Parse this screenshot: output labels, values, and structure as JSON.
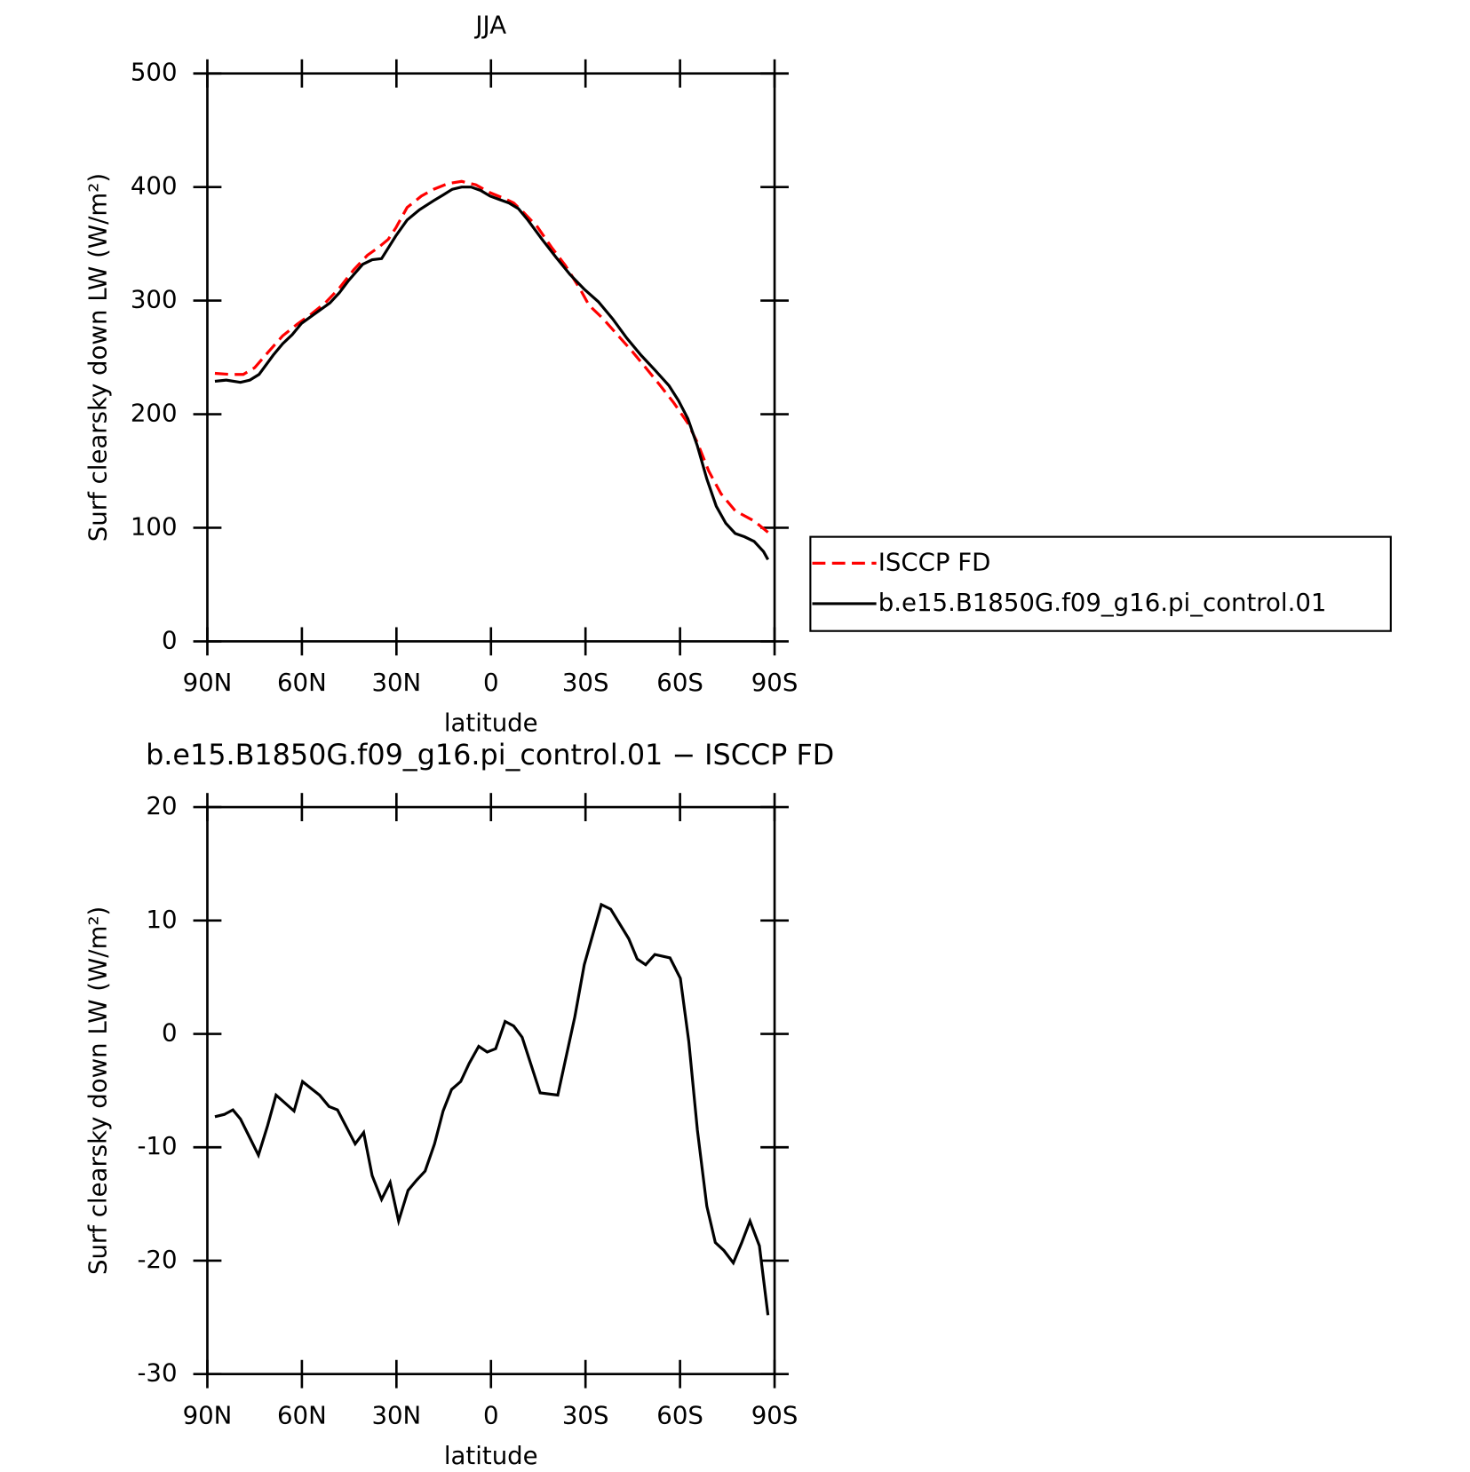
{
  "chart_data": [
    {
      "type": "line",
      "title": "JJA",
      "ylabel": "Surf clearsky down LW (W/m²)",
      "xlabel": "latitude",
      "xlim": [
        90,
        -90
      ],
      "xticks": [
        {
          "value": 90,
          "label": "90N"
        },
        {
          "value": 60,
          "label": "60N"
        },
        {
          "value": 30,
          "label": "30N"
        },
        0,
        {
          "value": -30,
          "label": "30S"
        },
        {
          "value": -60,
          "label": "60S"
        },
        {
          "value": -90,
          "label": "90S"
        }
      ],
      "ylim": [
        0,
        500
      ],
      "yticks": [
        0,
        100,
        200,
        300,
        400,
        500
      ],
      "legend": "right",
      "series": [
        {
          "name": "ISCCP FD",
          "color": "#ff0000",
          "style": "dashed",
          "x": [
            87.6,
            82.5,
            78.6,
            75.0,
            70.6,
            66.1,
            61.6,
            57.1,
            52.6,
            48.1,
            43.6,
            39.2,
            35.6,
            32.6,
            30.2,
            26.6,
            22.1,
            18.2,
            13.7,
            9.3,
            4.8,
            0.3,
            -4.2,
            -7.2,
            -10.2,
            -14.7,
            -19.2,
            -23.6,
            -28.1,
            -31.1,
            -35.6,
            -40.1,
            -44.6,
            -49.1,
            -53.5,
            -58.0,
            -62.5,
            -65.5,
            -69.1,
            -73.0,
            -77.5,
            -83.5,
            -87.9
          ],
          "values": [
            236,
            235,
            235,
            241,
            255,
            269,
            279,
            288,
            298,
            311,
            327,
            340,
            347,
            354,
            364,
            382,
            392,
            398,
            403,
            405,
            402,
            395,
            390,
            386,
            378,
            365,
            347,
            331,
            311,
            296,
            284,
            270,
            256,
            241,
            226,
            210,
            192,
            175,
            150,
            130,
            115,
            106,
            96
          ]
        },
        {
          "name": "b.e15.B1850G.f09_g16.pi_control.01",
          "color": "#000000",
          "style": "solid",
          "x": [
            87.6,
            84.0,
            79.5,
            76.5,
            73.6,
            69.1,
            66.1,
            63.1,
            60.1,
            55.6,
            51.1,
            48.1,
            45.1,
            40.7,
            37.7,
            34.7,
            30.2,
            26.6,
            22.7,
            18.2,
            15.2,
            12.3,
            9.3,
            6.3,
            3.3,
            0.3,
            -2.7,
            -5.7,
            -8.7,
            -11.7,
            -16.2,
            -20.7,
            -25.1,
            -29.6,
            -34.1,
            -38.6,
            -43.1,
            -47.6,
            -52.0,
            -56.5,
            -59.5,
            -62.5,
            -65.5,
            -68.5,
            -71.5,
            -74.5,
            -77.5,
            -80.5,
            -83.5,
            -86.5,
            -87.9
          ],
          "values": [
            229,
            230,
            228,
            230,
            235,
            252,
            262,
            270,
            280,
            289,
            298,
            307,
            318,
            332,
            336,
            337,
            357,
            371,
            380,
            388,
            393,
            398,
            400,
            400,
            397,
            392,
            389,
            386,
            381,
            371,
            354,
            338,
            323,
            310,
            299,
            284,
            267,
            252,
            239,
            225,
            212,
            196,
            172,
            143,
            119,
            104,
            95,
            92,
            88,
            79,
            72
          ]
        }
      ]
    },
    {
      "type": "line",
      "title": "b.e15.B1850G.f09_g16.pi_control.01 − ISCCP FD",
      "ylabel": "Surf clearsky down LW (W/m²)",
      "xlabel": "latitude",
      "xlim": [
        90,
        -90
      ],
      "xticks": [
        {
          "value": 90,
          "label": "90N"
        },
        {
          "value": 60,
          "label": "60N"
        },
        {
          "value": 30,
          "label": "30N"
        },
        0,
        {
          "value": -30,
          "label": "30S"
        },
        {
          "value": -60,
          "label": "60S"
        },
        {
          "value": -90,
          "label": "90S"
        }
      ],
      "ylim": [
        -30,
        20
      ],
      "yticks": [
        -30,
        -20,
        -10,
        0,
        10,
        20
      ],
      "series": [
        {
          "color": "#000000",
          "style": "solid",
          "x": [
            87.6,
            84.6,
            81.9,
            79.5,
            76.8,
            73.8,
            70.9,
            68.2,
            62.5,
            59.8,
            57.1,
            54.4,
            51.4,
            48.7,
            43.1,
            40.4,
            37.7,
            34.7,
            32.0,
            29.3,
            26.3,
            23.6,
            20.9,
            17.9,
            15.2,
            12.5,
            9.6,
            6.9,
            3.9,
            1.2,
            -1.5,
            -4.5,
            -7.2,
            -9.9,
            -15.6,
            -21.2,
            -26.6,
            -29.6,
            -35.0,
            -38.0,
            -43.7,
            -46.4,
            -49.1,
            -52.0,
            -56.8,
            -60.1,
            -62.8,
            -65.5,
            -68.5,
            -71.2,
            -73.9,
            -76.9,
            -79.6,
            -82.2,
            -85.2,
            -87.9
          ],
          "values": [
            -7.3,
            -7.1,
            -6.7,
            -7.5,
            -9.0,
            -10.7,
            -8.1,
            -5.4,
            -6.8,
            -4.2,
            -4.8,
            -5.4,
            -6.4,
            -6.7,
            -9.7,
            -8.7,
            -12.5,
            -14.6,
            -13.1,
            -16.5,
            -13.8,
            -12.9,
            -12.1,
            -9.7,
            -6.8,
            -4.9,
            -4.2,
            -2.6,
            -1.1,
            -1.6,
            -1.3,
            1.1,
            0.7,
            -0.3,
            -5.2,
            -5.4,
            1.5,
            6.1,
            11.4,
            11.0,
            8.4,
            6.6,
            6.1,
            7.0,
            6.7,
            4.9,
            -0.7,
            -8.5,
            -15.2,
            -18.4,
            -19.1,
            -20.2,
            -18.4,
            -16.5,
            -18.7,
            -24.8
          ]
        }
      ]
    }
  ]
}
